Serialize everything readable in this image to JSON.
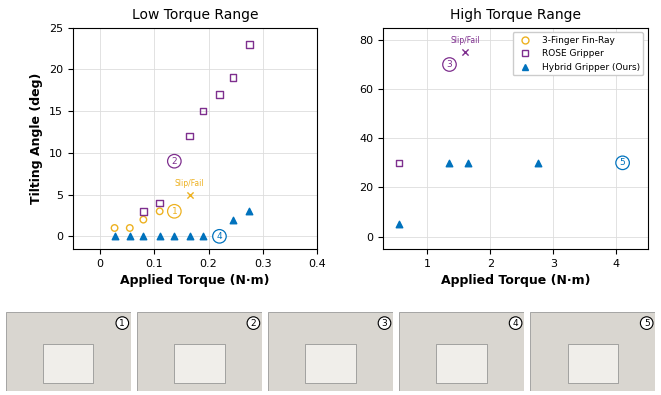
{
  "chart_data": [
    {
      "type": "scatter",
      "title": "Low Torque Range",
      "x_label": "Applied Torque (N·m)",
      "y_label": "Tilting Angle (deg)",
      "xlim": [
        -0.05,
        0.4
      ],
      "xticks": [
        0,
        0.1,
        0.2,
        0.3,
        0.4
      ],
      "ylim": [
        -1.5,
        25
      ],
      "yticks": [
        0,
        5,
        10,
        15,
        20,
        25
      ],
      "grid": true,
      "series": [
        {
          "name": "3-Finger Fin-Ray",
          "color": "#EDB120",
          "marker": "circle",
          "x": [
            0.027,
            0.055,
            0.08,
            0.11,
            0.137
          ],
          "values": [
            1,
            1,
            2,
            3,
            3
          ],
          "failure": {
            "x": 0.165,
            "y": 5,
            "label": "Slip/Fail"
          }
        },
        {
          "name": "ROSE Gripper",
          "color": "#7E2F8E",
          "marker": "square",
          "x": [
            0.08,
            0.11,
            0.137,
            0.165,
            0.19,
            0.22,
            0.245,
            0.275
          ],
          "values": [
            3,
            4,
            9,
            12,
            15,
            17,
            19,
            23
          ]
        },
        {
          "name": "Hybrid Gripper (Ours)",
          "color": "#0072BD",
          "marker": "triangle",
          "x": [
            0.027,
            0.055,
            0.08,
            0.11,
            0.137,
            0.165,
            0.19,
            0.22,
            0.245,
            0.275
          ],
          "values": [
            0,
            0,
            0,
            0,
            0,
            0,
            0,
            0,
            2,
            3
          ]
        }
      ],
      "annotations": [
        {
          "x": 0.137,
          "y": 3,
          "text": "1",
          "color": "#EDB120"
        },
        {
          "x": 0.137,
          "y": 9,
          "text": "2",
          "color": "#7E2F8E"
        },
        {
          "x": 0.22,
          "y": 0,
          "text": "4",
          "color": "#0072BD"
        }
      ]
    },
    {
      "type": "scatter",
      "title": "High Torque Range",
      "x_label": "Applied Torque (N·m)",
      "xlim": [
        0.3,
        4.5
      ],
      "xticks": [
        1,
        2,
        3,
        4
      ],
      "ylim": [
        -5,
        85
      ],
      "yticks": [
        0,
        20,
        40,
        60,
        80
      ],
      "grid": true,
      "legend": "upper right",
      "series": [
        {
          "name": "3-Finger Fin-Ray",
          "color": "#EDB120",
          "marker": "circle",
          "x": [],
          "values": []
        },
        {
          "name": "ROSE Gripper",
          "color": "#7E2F8E",
          "marker": "square",
          "x": [
            0.55,
            1.35
          ],
          "values": [
            30,
            70
          ],
          "failure": {
            "x": 1.6,
            "y": 75,
            "label": "Slip/Fail"
          }
        },
        {
          "name": "Hybrid Gripper (Ours)",
          "color": "#0072BD",
          "marker": "triangle",
          "x": [
            0.55,
            1.35,
            1.65,
            2.75,
            4.1
          ],
          "values": [
            5,
            30,
            30,
            30,
            30
          ]
        }
      ],
      "annotations": [
        {
          "x": 1.35,
          "y": 70,
          "text": "3",
          "color": "#7E2F8E"
        },
        {
          "x": 4.1,
          "y": 30,
          "text": "5",
          "color": "#0072BD"
        }
      ]
    }
  ],
  "photo_panels": [
    "1",
    "2",
    "3",
    "4",
    "5"
  ]
}
